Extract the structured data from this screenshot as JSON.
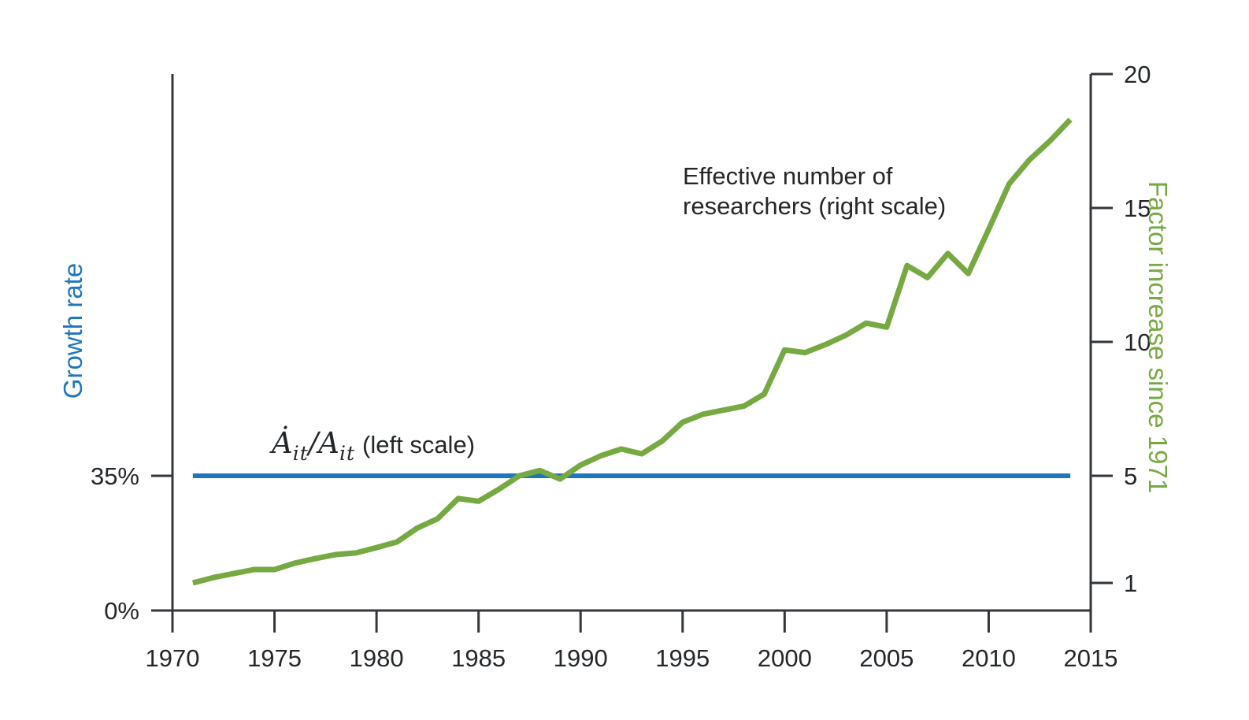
{
  "chart_data": {
    "type": "line",
    "title": "",
    "x_axis": {
      "min": 1970,
      "max": 2015,
      "ticks": [
        1970,
        1975,
        1980,
        1985,
        1990,
        1995,
        2000,
        2005,
        2010,
        2015
      ]
    },
    "left_axis": {
      "label": "Growth rate",
      "unit": "%",
      "ticks": [
        {
          "value": 0,
          "label": "0%"
        },
        {
          "value": 35,
          "label": "35%"
        }
      ]
    },
    "right_axis": {
      "label": "Factor increase since 1971",
      "min": 1,
      "max": 20,
      "ticks": [
        1,
        5,
        10,
        15,
        20
      ]
    },
    "grid": "off",
    "legend": "annotations-inline",
    "series": [
      {
        "key": "growth-rate",
        "name": "Adot_it/A_it growth rate (left scale)",
        "axis": "left",
        "color": "#1e76bd",
        "stroke_width": 6,
        "x": [
          1971,
          2014
        ],
        "values": [
          35,
          35
        ]
      },
      {
        "key": "researchers",
        "name": "Effective number of researchers (right scale)",
        "axis": "right",
        "color": "#77a943",
        "stroke_width": 7,
        "x": [
          1971,
          1972,
          1973,
          1974,
          1975,
          1976,
          1977,
          1978,
          1979,
          1980,
          1981,
          1982,
          1983,
          1984,
          1985,
          1986,
          1987,
          1988,
          1989,
          1990,
          1991,
          1992,
          1993,
          1994,
          1995,
          1996,
          1997,
          1998,
          1999,
          2000,
          2001,
          2002,
          2003,
          2004,
          2005,
          2006,
          2007,
          2008,
          2009,
          2010,
          2011,
          2012,
          2013,
          2014
        ],
        "values": [
          1.0,
          1.2,
          1.35,
          1.5,
          1.5,
          1.74,
          1.91,
          2.06,
          2.12,
          2.32,
          2.53,
          3.05,
          3.4,
          4.15,
          4.05,
          4.5,
          5.0,
          5.2,
          4.88,
          5.4,
          5.75,
          6.0,
          5.82,
          6.3,
          7.0,
          7.3,
          7.45,
          7.6,
          8.05,
          9.7,
          9.6,
          9.9,
          10.25,
          10.7,
          10.55,
          12.85,
          12.4,
          13.3,
          12.55,
          14.2,
          15.9,
          16.8,
          17.5,
          18.3
        ]
      }
    ],
    "colors": {
      "blue": "#1e76bd",
      "green": "#77a943",
      "axis": "#33373b",
      "text": "#24272a"
    }
  },
  "annotations": {
    "researchers": {
      "line1": "Effective number of",
      "line2": "researchers (right scale)"
    },
    "growth": {
      "a_dot": "Ȧ",
      "sub1": "it",
      "slash": "/",
      "a": "A",
      "sub2": "it",
      "rest": "(left scale)"
    }
  },
  "axis_titles": {
    "left": "Growth rate",
    "right": "Factor increase since 1971"
  }
}
